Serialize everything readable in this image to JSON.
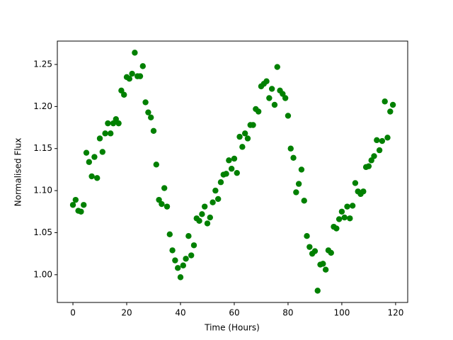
{
  "chart_data": {
    "type": "scatter",
    "xlabel": "Time (Hours)",
    "ylabel": "Normalised Flux",
    "color": "#008000",
    "xlim": [
      -5.8,
      124.5
    ],
    "ylim": [
      0.967,
      1.2778
    ],
    "xticks": [
      0,
      20,
      40,
      60,
      80,
      100,
      120
    ],
    "yticks": [
      {
        "value": 1.0,
        "label": "1.00"
      },
      1.05,
      {
        "value": 1.1,
        "label": "1.10"
      },
      1.15,
      {
        "value": 1.2,
        "label": "1.20"
      },
      1.25
    ],
    "x": [
      0,
      1,
      2,
      3,
      4,
      5,
      6,
      7,
      8,
      9,
      10,
      11,
      12,
      13,
      14,
      15,
      16,
      17,
      18,
      19,
      20,
      21,
      22,
      23,
      24,
      25,
      26,
      27,
      28,
      29,
      30,
      31,
      32,
      33,
      34,
      35,
      36,
      37,
      38,
      39,
      40,
      41,
      42,
      43,
      44,
      45,
      46,
      47,
      48,
      49,
      50,
      51,
      52,
      53,
      54,
      55,
      56,
      57,
      58,
      59,
      60,
      61,
      62,
      63,
      64,
      65,
      66,
      67,
      68,
      69,
      70,
      71,
      72,
      73,
      74,
      75,
      76,
      77,
      78,
      79,
      80,
      81,
      82,
      83,
      84,
      85,
      86,
      87,
      88,
      89,
      90,
      91,
      92,
      93,
      94,
      95,
      96,
      97,
      98,
      99,
      100,
      101,
      102,
      103,
      104,
      105,
      106,
      107,
      108,
      109,
      110,
      111,
      112,
      113,
      114,
      115,
      116,
      117,
      118,
      119
    ],
    "values": [
      1.083,
      1.089,
      1.076,
      1.075,
      1.083,
      1.145,
      1.134,
      1.117,
      1.14,
      1.115,
      1.162,
      1.146,
      1.168,
      1.18,
      1.168,
      1.18,
      1.185,
      1.18,
      1.219,
      1.214,
      1.235,
      1.233,
      1.239,
      1.264,
      1.236,
      1.236,
      1.248,
      1.205,
      1.193,
      1.187,
      1.171,
      1.131,
      1.089,
      1.084,
      1.103,
      1.081,
      1.048,
      1.029,
      1.017,
      1.008,
      0.997,
      1.011,
      1.019,
      1.046,
      1.023,
      1.035,
      1.067,
      1.064,
      1.072,
      1.081,
      1.061,
      1.068,
      1.086,
      1.1,
      1.09,
      1.11,
      1.119,
      1.12,
      1.136,
      1.126,
      1.138,
      1.121,
      1.164,
      1.152,
      1.168,
      1.162,
      1.178,
      1.178,
      1.197,
      1.194,
      1.224,
      1.227,
      1.23,
      1.21,
      1.221,
      1.202,
      1.247,
      1.219,
      1.215,
      1.21,
      1.189,
      1.15,
      1.139,
      1.098,
      1.108,
      1.125,
      1.088,
      1.046,
      1.033,
      1.025,
      1.028,
      0.981,
      1.012,
      1.013,
      1.006,
      1.029,
      1.026,
      1.057,
      1.055,
      1.066,
      1.075,
      1.068,
      1.081,
      1.067,
      1.082,
      1.109,
      1.099,
      1.096,
      1.099,
      1.128,
      1.129,
      1.136,
      1.141,
      1.16,
      1.148,
      1.159,
      1.206,
      1.163,
      1.194,
      1.202
    ]
  }
}
